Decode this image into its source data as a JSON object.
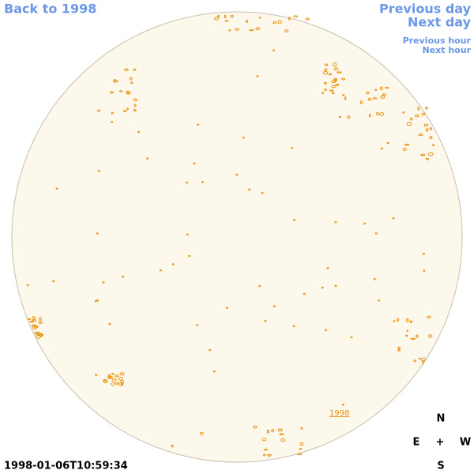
{
  "navigation": {
    "back": "Back to 1998",
    "previous_day": "Previous day",
    "next_day": "Next day",
    "previous_hour": "Previous hour",
    "next_hour": "Next hour"
  },
  "image": {
    "region_label": "1998",
    "timestamp": "1998-01-06T10:59:34"
  },
  "compass": {
    "north": "N",
    "east": "E",
    "center": "+",
    "west": "W",
    "south": "S"
  }
}
